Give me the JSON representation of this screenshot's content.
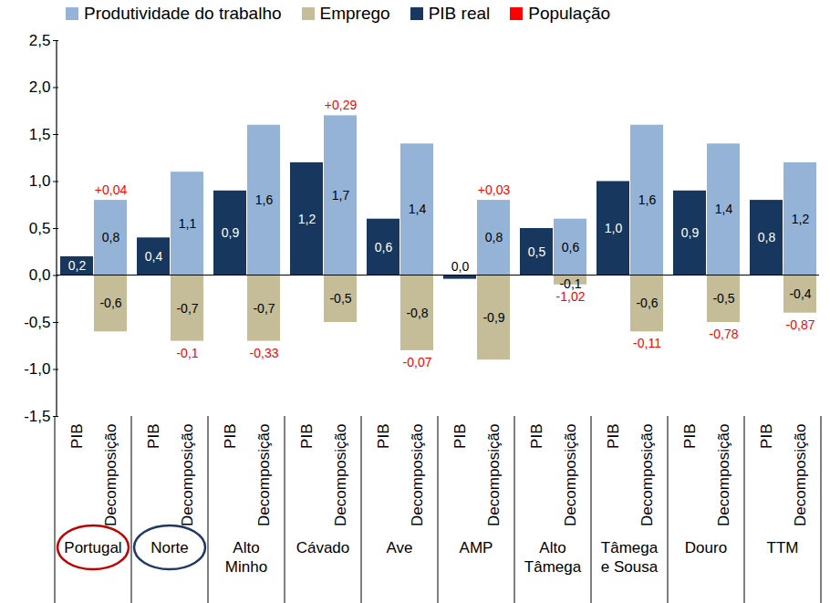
{
  "chart_data": {
    "type": "bar",
    "categories": [
      "Portugal",
      "Norte",
      "Alto Minho",
      "Cávado",
      "Ave",
      "AMP",
      "Alto Tâmega",
      "Tâmega e Sousa",
      "Douro",
      "TTM"
    ],
    "groups": [
      "PIB",
      "Decomposição"
    ],
    "series": [
      {
        "name": "Produtividade do trabalho",
        "color": "#95b3d7",
        "group": "Decomposição",
        "values": [
          0.8,
          1.1,
          1.6,
          1.7,
          1.4,
          0.8,
          0.6,
          1.6,
          1.4,
          1.2
        ],
        "value_labels": [
          "0,8",
          "1,1",
          "1,6",
          "1,7",
          "1,4",
          "0,8",
          "0,6",
          "1,6",
          "1,4",
          "1,2"
        ]
      },
      {
        "name": "Emprego",
        "color": "#c4bd97",
        "group": "Decomposição",
        "values": [
          -0.6,
          -0.7,
          -0.7,
          -0.5,
          -0.8,
          -0.9,
          -0.1,
          -0.6,
          -0.5,
          -0.4
        ],
        "value_labels": [
          "-0,6",
          "-0,7",
          "-0,7",
          "-0,5",
          "-0,8",
          "-0,9",
          "-0,1",
          "-0,6",
          "-0,5",
          "-0,4"
        ]
      },
      {
        "name": "PIB real",
        "color": "#17375e",
        "group": "PIB",
        "values": [
          0.2,
          0.4,
          0.9,
          1.2,
          0.6,
          -0.04,
          0.5,
          1.0,
          0.9,
          0.8
        ],
        "value_labels": [
          "0,2",
          "0,4",
          "0,9",
          "1,2",
          "0,6",
          "0,0",
          "0,5",
          "1,0",
          "0,9",
          "0,8"
        ]
      },
      {
        "name": "População",
        "type": "text",
        "color": "#ff0000",
        "group": "Decomposição",
        "values": [
          0.04,
          -0.1,
          -0.33,
          0.29,
          -0.07,
          0.03,
          -1.02,
          -0.11,
          -0.78,
          -0.87
        ],
        "value_labels": [
          "+0,04",
          "-0,1",
          "-0,33",
          "+0,29",
          "-0,07",
          "+0,03",
          "-1,02",
          "-0,11",
          "-0,78",
          "-0,87"
        ]
      }
    ],
    "ylim": [
      -1.5,
      2.5
    ],
    "yticks": [
      {
        "value": -1.5,
        "label": "-1,5"
      },
      {
        "value": -1.0,
        "label": "-1,0"
      },
      {
        "value": -0.5,
        "label": "-0,5"
      },
      {
        "value": 0,
        "label": "0,0"
      },
      {
        "value": 0.5,
        "label": "0,5"
      },
      {
        "value": 1.0,
        "label": "1,0"
      },
      {
        "value": 1.5,
        "label": "1,5"
      },
      {
        "value": 2.0,
        "label": "2,0"
      },
      {
        "value": 2.5,
        "label": "2,5"
      }
    ],
    "legend": "top",
    "grid": false,
    "data_labels": true
  }
}
